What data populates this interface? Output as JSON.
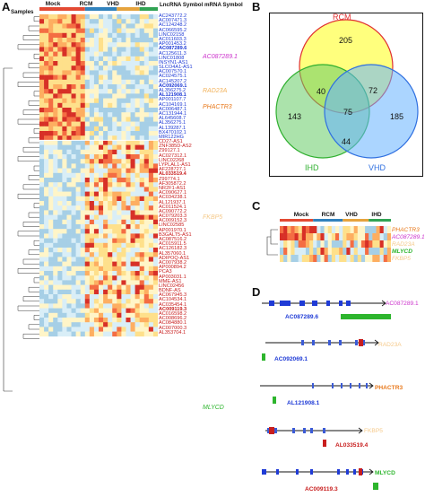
{
  "panels": {
    "a": "A",
    "b": "B",
    "c": "C",
    "d": "D"
  },
  "panel_a": {
    "header_samples": "Samples",
    "groups": [
      "Mock",
      "RCM",
      "VHD",
      "IHD"
    ],
    "header_lncrna": "LncRNA Symbol",
    "header_mrna": "mRNA Symbol",
    "lncrnas_blue": [
      "AC243772.2",
      "AC007471.3",
      "AC124248.2",
      "AC066595.2",
      "LINC02158",
      "AC011603.3",
      "AP001453.2",
      "AC087289.6",
      "AC125611.3",
      "LINC01808",
      "INSYN1-AS1",
      "SLCO4A1-AS1",
      "AC007570.1",
      "AC024575.1",
      "AC145207.2",
      "AC092069.1",
      "AL356275.2",
      "AL121908.1",
      "AP001107.7",
      "AC104169.1",
      "AC006487.1",
      "AC131944.1",
      "AL645608.7",
      "AL356275.1",
      "AL139287.1",
      "BX470102.1",
      "MIR122HG"
    ],
    "lncrnas_red": [
      "CD27-AS1",
      "ZNF385D-AS2",
      "Z99127.1",
      "AC027312.1",
      "LINC02268",
      "LYPLAL1-AS1",
      "AF228727.1",
      "AL033519.4",
      "Z99774.1",
      "AF305872.2",
      "NR2F1-AS1",
      "AC090627.1",
      "AC034238.1",
      "AL121937.1",
      "AC011524.1",
      "AC090772.2",
      "AC079203.3",
      "AC009152.3",
      "LINC02585",
      "AP001970.1",
      "B3GALT5-AS1",
      "AC087516.2",
      "AC015911.5",
      "AC126182.3",
      "AL357060.1",
      "ADIPOQ-AS1",
      "AC007938.2",
      "AP000894.2",
      "PCA3",
      "AP003031.1",
      "MME-AS1",
      "LINC02456",
      "BDNF-AS",
      "AC067945.3",
      "AC104534.1",
      "AC035454.1",
      "AC009119.3",
      "AC016598.2",
      "AC008696.2",
      "AC084880.1",
      "AC007000.3",
      "AL353704.1"
    ],
    "bold_items": [
      "AC087289.6",
      "AC092069.1",
      "AL121908.1",
      "AL033519.4",
      "AC009119.3"
    ],
    "mrna_labels": [
      {
        "text": "AC087289.1",
        "color": "#cc33cc"
      },
      {
        "text": "RAD23A",
        "color": "#f2b25a"
      },
      {
        "text": "PHACTR3",
        "color": "#e8791c"
      },
      {
        "text": "FKBP5",
        "color": "#f5c98a"
      },
      {
        "text": "MLYCD",
        "color": "#2db52d"
      }
    ]
  },
  "panel_b": {
    "circle_labels": {
      "rcm": "RCM",
      "ihd": "IHD",
      "vhd": "VHD"
    },
    "counts": {
      "rcm_only": "205",
      "ihd_only": "143",
      "vhd_only": "185",
      "rcm_ihd": "40",
      "rcm_vhd": "72",
      "ihd_vhd": "44",
      "all": "75"
    },
    "colors": {
      "rcm": "#ffff66",
      "ihd": "#66cc66",
      "vhd": "#66b3ff",
      "rcm_edge": "#e03030",
      "ihd_edge": "#30b030",
      "vhd_edge": "#3070e0"
    }
  },
  "panel_c": {
    "groups": [
      "Mock",
      "RCM",
      "VHD",
      "IHD"
    ],
    "genes": [
      {
        "text": "PHACTR3",
        "color": "#e8791c"
      },
      {
        "text": "AC087289.1",
        "color": "#cc33cc"
      },
      {
        "text": "RAD23A",
        "color": "#f5c98a"
      },
      {
        "text": "MLYCD",
        "color": "#2db52d"
      },
      {
        "text": "FKBP5",
        "color": "#f5c98a"
      }
    ]
  },
  "panel_d": {
    "pairs": [
      {
        "mrna": "AC087289.1",
        "mrna_color": "#cc33cc",
        "lnc": "AC087289.6",
        "lnc_color": "#1f3bd6"
      },
      {
        "mrna": "RAD23A",
        "mrna_color": "#f5c98a",
        "lnc": "AC092069.1",
        "lnc_color": "#1f3bd6"
      },
      {
        "mrna": "PHACTR3",
        "mrna_color": "#e8791c",
        "lnc": "AL121908.1",
        "lnc_color": "#1f3bd6"
      },
      {
        "mrna": "FKBP5",
        "mrna_color": "#f5c98a",
        "lnc": "AL033519.4",
        "lnc_color": "#c81e1e"
      },
      {
        "mrna": "MLYCD",
        "mrna_color": "#2db52d",
        "lnc": "AC009119.3",
        "lnc_color": "#c81e1e"
      }
    ]
  }
}
